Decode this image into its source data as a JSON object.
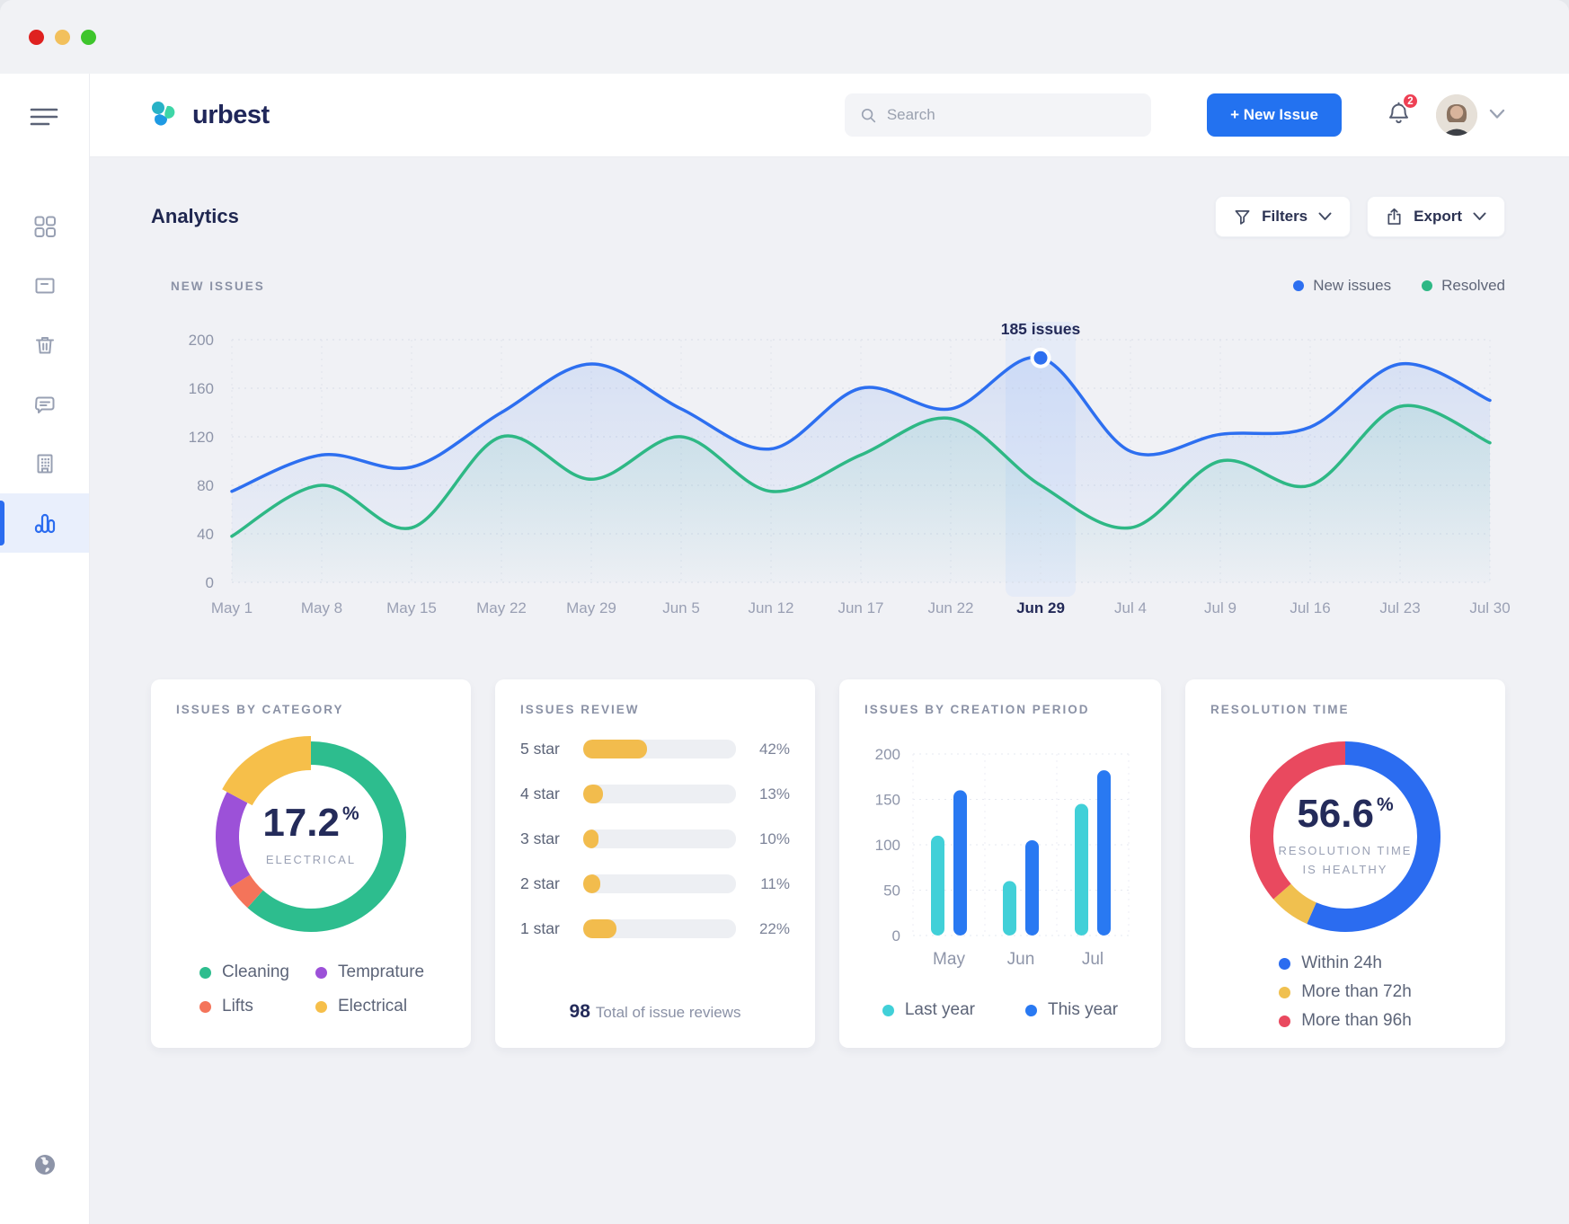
{
  "window": {
    "traffic_lights": [
      "#df2120",
      "#f2c05c",
      "#3ec52c"
    ]
  },
  "sidebar": {
    "icons": [
      "hamburger-menu-icon",
      "dashboard-grid-icon",
      "archive-box-icon",
      "trash-icon",
      "messages-icon",
      "building-icon",
      "analytics-chart-icon",
      "globe-icon"
    ],
    "active_item": "analytics"
  },
  "header": {
    "logo_text": "urbest",
    "search_placeholder": "Search",
    "new_issue_label": "+ New Issue",
    "notification_count": "2"
  },
  "page": {
    "title": "Analytics",
    "filters_label": "Filters",
    "export_label": "Export"
  },
  "chart_data": [
    {
      "id": "new_issues",
      "type": "line",
      "title": "NEW ISSUES",
      "x": [
        "May 1",
        "May 8",
        "May 15",
        "May 22",
        "May 29",
        "Jun 5",
        "Jun 12",
        "Jun 17",
        "Jun 22",
        "Jun 29",
        "Jul 4",
        "Jul 9",
        "Jul 16",
        "Jul 23",
        "Jul 30"
      ],
      "ylim": [
        0,
        200
      ],
      "yticks": [
        0,
        40,
        80,
        120,
        160,
        200
      ],
      "grid": true,
      "legend_position": "top-right",
      "highlight_index": 9,
      "highlight_label": "Jun 29",
      "tooltip_text": "185 issues",
      "tooltip_value": 185,
      "series": [
        {
          "name": "New issues",
          "color": "#2d6ff0",
          "values": [
            75,
            105,
            95,
            140,
            180,
            143,
            110,
            160,
            143,
            185,
            108,
            122,
            128,
            180,
            150
          ]
        },
        {
          "name": "Resolved",
          "color": "#2eb885",
          "values": [
            38,
            80,
            45,
            120,
            85,
            120,
            75,
            105,
            135,
            80,
            45,
            100,
            80,
            145,
            115
          ]
        }
      ]
    },
    {
      "id": "issues_by_category",
      "type": "pie",
      "title": "ISSUES BY CATEGORY",
      "center_value": "17.2",
      "center_unit": "%",
      "center_label": "ELECTRICAL",
      "slices": [
        {
          "label": "Cleaning",
          "value": 61.6,
          "color": "#2dbd8e"
        },
        {
          "label": "Lifts",
          "value": 4.5,
          "color": "#f4745a"
        },
        {
          "label": "Temprature",
          "value": 16.7,
          "color": "#9c51d8"
        },
        {
          "label": "Electrical",
          "value": 17.2,
          "color": "#f6bf4a",
          "emphasis": true
        }
      ],
      "legend_order": [
        0,
        2,
        1,
        3
      ]
    },
    {
      "id": "issues_review",
      "type": "bar",
      "title": "ISSUES REVIEW",
      "categories": [
        "5 star",
        "4 star",
        "3 star",
        "2 star",
        "1 star"
      ],
      "values": [
        42,
        13,
        10,
        11,
        22
      ],
      "unit": "%",
      "bar_color": "#f2bc4d",
      "total_value": "98",
      "total_label": "Total of issue reviews"
    },
    {
      "id": "issues_by_creation_period",
      "type": "bar",
      "title": "ISSUES BY CREATION PERIOD",
      "categories": [
        "May",
        "Jun",
        "Jul"
      ],
      "ylim": [
        0,
        200
      ],
      "yticks": [
        0,
        50,
        100,
        150,
        200
      ],
      "series": [
        {
          "name": "Last year",
          "color": "#41d0d8",
          "values": [
            110,
            60,
            145
          ]
        },
        {
          "name": "This year",
          "color": "#2979f2",
          "values": [
            160,
            105,
            182
          ]
        }
      ]
    },
    {
      "id": "resolution_time",
      "type": "pie",
      "title": "RESOLUTION TIME",
      "center_value": "56.6",
      "center_unit": "%",
      "center_label": "RESOLUTION TIME IS HEALTHY",
      "slices": [
        {
          "label": "Within 24h",
          "value": 56.6,
          "color": "#2b6cf0"
        },
        {
          "label": "More than 72h",
          "value": 7.0,
          "color": "#f0c04f"
        },
        {
          "label": "More than 96h",
          "value": 36.4,
          "color": "#e9495f"
        }
      ]
    }
  ]
}
